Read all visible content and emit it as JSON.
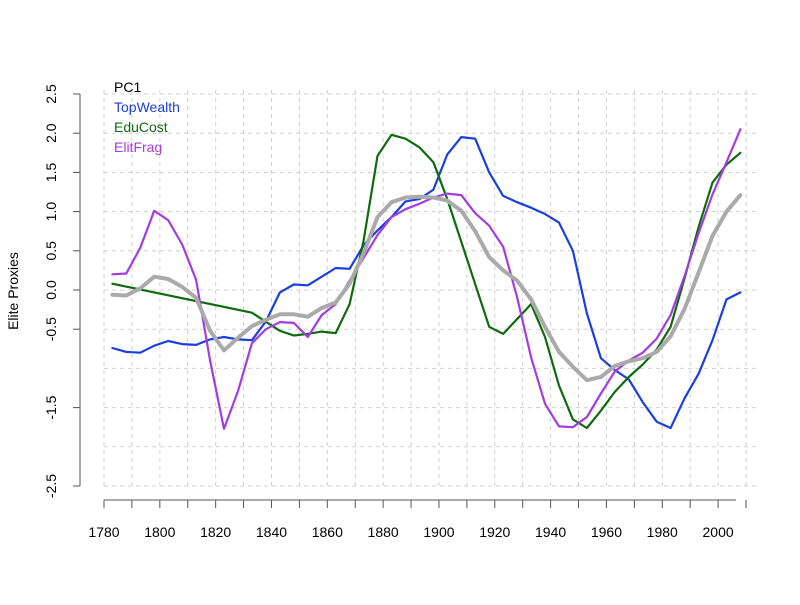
{
  "chart_data": {
    "type": "line",
    "ylabel": "Elite Proxies",
    "xlim": [
      1780,
      2010
    ],
    "ylim": [
      -2.5,
      2.5
    ],
    "x_ticks": [
      1780,
      1800,
      1820,
      1840,
      1860,
      1880,
      1900,
      1920,
      1940,
      1960,
      1980,
      2000
    ],
    "x_tick_labels": [
      "1780",
      "1800",
      "1820",
      "1840",
      "1860",
      "1880",
      "1900",
      "1920",
      "1940",
      "1960",
      "1980",
      "2000"
    ],
    "y_ticks": [
      2.5,
      2.0,
      1.5,
      1.0,
      0.5,
      0.0,
      -0.5,
      -1.5,
      -2.5
    ],
    "y_tick_labels": [
      "2.5",
      "2.0",
      "1.5",
      "1.0",
      "0.5",
      "0.0",
      "-0.5",
      "-1.5",
      "-2.5"
    ],
    "y_grid": [
      2.5,
      2.0,
      1.5,
      1.0,
      0.5,
      0.0,
      -0.5,
      -1.0,
      -1.5,
      -2.0,
      -2.5
    ],
    "x_grid": [
      1780,
      1790,
      1800,
      1810,
      1820,
      1830,
      1840,
      1850,
      1860,
      1870,
      1880,
      1890,
      1900,
      1910,
      1920,
      1930,
      1940,
      1950,
      1960,
      1970,
      1980,
      1990,
      2000,
      2010
    ],
    "grid": true,
    "legend_position": "top-left",
    "series": [
      {
        "name": "TopWealth",
        "color": "#1a3fe0",
        "width": 2.2,
        "points": [
          [
            1783,
            -0.74
          ],
          [
            1788,
            -0.79
          ],
          [
            1793,
            -0.8
          ],
          [
            1798,
            -0.71
          ],
          [
            1803,
            -0.65
          ],
          [
            1808,
            -0.69
          ],
          [
            1813,
            -0.7
          ],
          [
            1818,
            -0.63
          ],
          [
            1823,
            -0.6
          ],
          [
            1828,
            -0.63
          ],
          [
            1833,
            -0.64
          ],
          [
            1838,
            -0.4
          ],
          [
            1843,
            -0.03
          ],
          [
            1848,
            0.07
          ],
          [
            1853,
            0.06
          ],
          [
            1858,
            0.17
          ],
          [
            1863,
            0.28
          ],
          [
            1868,
            0.27
          ],
          [
            1873,
            0.57
          ],
          [
            1878,
            0.76
          ],
          [
            1883,
            0.93
          ],
          [
            1888,
            1.13
          ],
          [
            1893,
            1.16
          ],
          [
            1898,
            1.28
          ],
          [
            1903,
            1.73
          ],
          [
            1908,
            1.95
          ],
          [
            1913,
            1.93
          ],
          [
            1918,
            1.5
          ],
          [
            1923,
            1.2
          ],
          [
            1928,
            1.12
          ],
          [
            1933,
            1.05
          ],
          [
            1938,
            0.97
          ],
          [
            1943,
            0.86
          ],
          [
            1948,
            0.5
          ],
          [
            1953,
            -0.3
          ],
          [
            1958,
            -0.87
          ],
          [
            1963,
            -1.02
          ],
          [
            1968,
            -1.14
          ],
          [
            1973,
            -1.43
          ],
          [
            1978,
            -1.68
          ],
          [
            1983,
            -1.76
          ],
          [
            1988,
            -1.38
          ],
          [
            1993,
            -1.07
          ],
          [
            1998,
            -0.64
          ],
          [
            2003,
            -0.12
          ],
          [
            2008,
            -0.03
          ]
        ]
      },
      {
        "name": "EduCost",
        "color": "#0f6b0f",
        "width": 2.2,
        "points": [
          [
            1783,
            0.08
          ],
          [
            1833,
            -0.29
          ],
          [
            1843,
            -0.52
          ],
          [
            1848,
            -0.58
          ],
          [
            1853,
            -0.56
          ],
          [
            1858,
            -0.53
          ],
          [
            1863,
            -0.55
          ],
          [
            1868,
            -0.18
          ],
          [
            1873,
            0.63
          ],
          [
            1878,
            1.71
          ],
          [
            1883,
            1.98
          ],
          [
            1888,
            1.93
          ],
          [
            1893,
            1.82
          ],
          [
            1898,
            1.63
          ],
          [
            1903,
            1.16
          ],
          [
            1918,
            -0.47
          ],
          [
            1923,
            -0.56
          ],
          [
            1933,
            -0.18
          ],
          [
            1938,
            -0.6
          ],
          [
            1943,
            -1.22
          ],
          [
            1948,
            -1.65
          ],
          [
            1953,
            -1.76
          ],
          [
            1958,
            -1.54
          ],
          [
            1963,
            -1.3
          ],
          [
            1968,
            -1.11
          ],
          [
            1973,
            -0.95
          ],
          [
            1978,
            -0.76
          ],
          [
            1983,
            -0.47
          ],
          [
            1988,
            0.15
          ],
          [
            1993,
            0.8
          ],
          [
            1998,
            1.37
          ],
          [
            2003,
            1.6
          ],
          [
            2008,
            1.75
          ]
        ]
      },
      {
        "name": "ElitFrag",
        "color": "#a23de0",
        "width": 2.2,
        "points": [
          [
            1783,
            0.2
          ],
          [
            1788,
            0.21
          ],
          [
            1793,
            0.54
          ],
          [
            1798,
            1.01
          ],
          [
            1803,
            0.89
          ],
          [
            1808,
            0.58
          ],
          [
            1813,
            0.13
          ],
          [
            1818,
            -0.9
          ],
          [
            1823,
            -1.77
          ],
          [
            1828,
            -1.29
          ],
          [
            1833,
            -0.68
          ],
          [
            1838,
            -0.5
          ],
          [
            1843,
            -0.41
          ],
          [
            1848,
            -0.42
          ],
          [
            1853,
            -0.6
          ],
          [
            1858,
            -0.32
          ],
          [
            1863,
            -0.18
          ],
          [
            1868,
            0.12
          ],
          [
            1873,
            0.41
          ],
          [
            1878,
            0.7
          ],
          [
            1883,
            0.93
          ],
          [
            1888,
            1.03
          ],
          [
            1893,
            1.1
          ],
          [
            1898,
            1.18
          ],
          [
            1903,
            1.23
          ],
          [
            1908,
            1.21
          ],
          [
            1913,
            0.98
          ],
          [
            1918,
            0.82
          ],
          [
            1923,
            0.55
          ],
          [
            1928,
            -0.09
          ],
          [
            1933,
            -0.86
          ],
          [
            1938,
            -1.45
          ],
          [
            1943,
            -1.74
          ],
          [
            1948,
            -1.75
          ],
          [
            1953,
            -1.62
          ],
          [
            1958,
            -1.32
          ],
          [
            1963,
            -1.04
          ],
          [
            1968,
            -0.9
          ],
          [
            1973,
            -0.8
          ],
          [
            1978,
            -0.62
          ],
          [
            1983,
            -0.32
          ],
          [
            1988,
            0.18
          ],
          [
            1993,
            0.72
          ],
          [
            1998,
            1.22
          ],
          [
            2003,
            1.63
          ],
          [
            2008,
            2.05
          ]
        ]
      },
      {
        "name": "PC1",
        "color": "#aaaaaa",
        "width": 4,
        "points": [
          [
            1783,
            -0.06
          ],
          [
            1788,
            -0.07
          ],
          [
            1793,
            0.02
          ],
          [
            1798,
            0.17
          ],
          [
            1803,
            0.14
          ],
          [
            1808,
            0.04
          ],
          [
            1813,
            -0.1
          ],
          [
            1818,
            -0.52
          ],
          [
            1823,
            -0.77
          ],
          [
            1828,
            -0.61
          ],
          [
            1833,
            -0.46
          ],
          [
            1838,
            -0.38
          ],
          [
            1843,
            -0.31
          ],
          [
            1848,
            -0.31
          ],
          [
            1853,
            -0.34
          ],
          [
            1858,
            -0.23
          ],
          [
            1863,
            -0.16
          ],
          [
            1868,
            0.08
          ],
          [
            1873,
            0.47
          ],
          [
            1878,
            0.93
          ],
          [
            1883,
            1.12
          ],
          [
            1888,
            1.18
          ],
          [
            1893,
            1.19
          ],
          [
            1898,
            1.18
          ],
          [
            1903,
            1.14
          ],
          [
            1908,
            1.01
          ],
          [
            1913,
            0.75
          ],
          [
            1918,
            0.42
          ],
          [
            1923,
            0.25
          ],
          [
            1928,
            0.12
          ],
          [
            1933,
            -0.12
          ],
          [
            1938,
            -0.47
          ],
          [
            1943,
            -0.79
          ],
          [
            1948,
            -0.98
          ],
          [
            1953,
            -1.15
          ],
          [
            1958,
            -1.11
          ],
          [
            1963,
            -0.97
          ],
          [
            1968,
            -0.91
          ],
          [
            1973,
            -0.87
          ],
          [
            1978,
            -0.79
          ],
          [
            1983,
            -0.59
          ],
          [
            1988,
            -0.24
          ],
          [
            1993,
            0.22
          ],
          [
            1998,
            0.69
          ],
          [
            2003,
            1.0
          ],
          [
            2008,
            1.21
          ]
        ]
      }
    ],
    "legend": [
      {
        "label": "PC1",
        "color": "#000000"
      },
      {
        "label": "TopWealth",
        "color": "#1a3fe0"
      },
      {
        "label": "EduCost",
        "color": "#0f6b0f"
      },
      {
        "label": "ElitFrag",
        "color": "#a23de0"
      }
    ]
  }
}
